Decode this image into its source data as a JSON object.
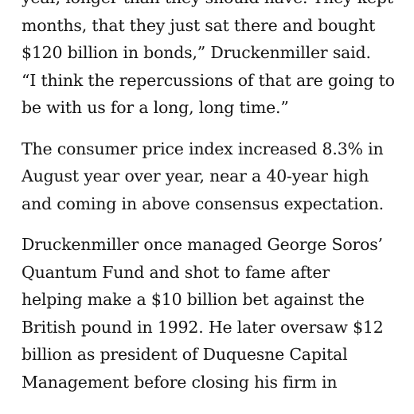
{
  "article": {
    "paragraphs": [
      {
        "lines": [
          "year, longer than they should have. They kept",
          "months, that they just sat there and bought",
          "$120 billion in bonds,” Druckenmiller said.",
          "“I think the repercussions of that are going to",
          "be with us for a long, long time.”"
        ]
      },
      {
        "lines": [
          "The consumer price index increased 8.3% in",
          "August year over year, near a 40-year high",
          "and coming in above consensus expectation."
        ]
      },
      {
        "lines": [
          "Druckenmiller once managed George Soros’",
          "Quantum Fund and shot to fame after",
          "helping make a $10 billion bet against the",
          "British pound in 1992. He later oversaw $12",
          "billion as president of Duquesne Capital",
          "Management before closing his firm in"
        ]
      }
    ]
  }
}
